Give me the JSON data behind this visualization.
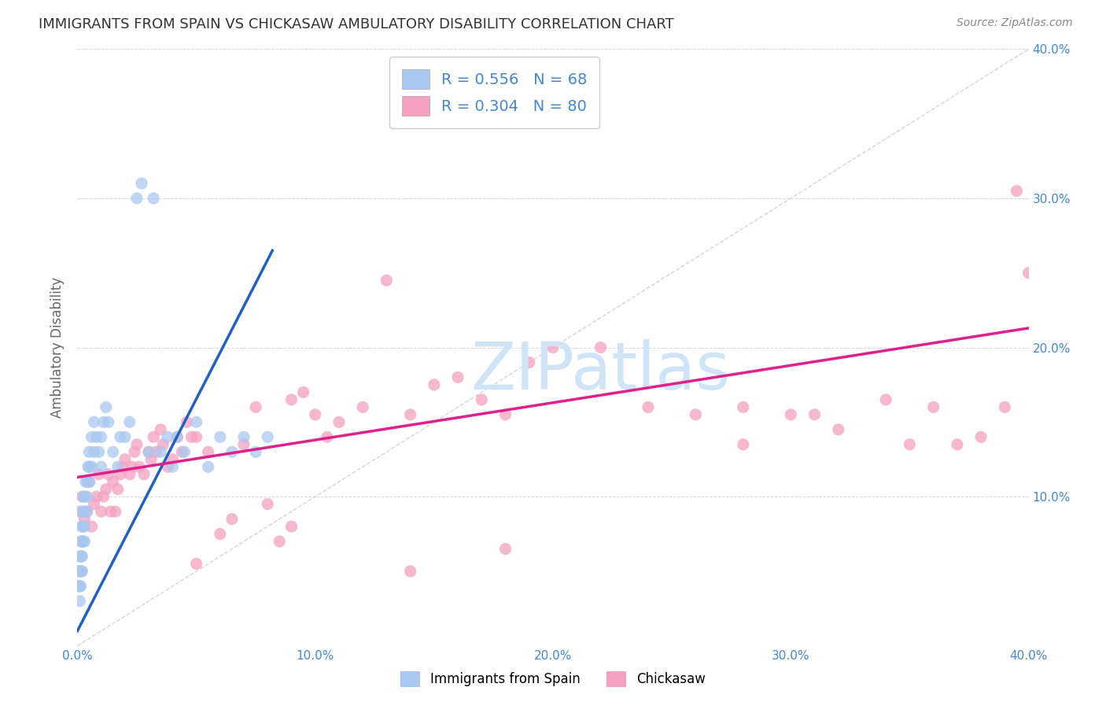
{
  "title": "IMMIGRANTS FROM SPAIN VS CHICKASAW AMBULATORY DISABILITY CORRELATION CHART",
  "source": "Source: ZipAtlas.com",
  "ylabel": "Ambulatory Disability",
  "xlim": [
    0.0,
    0.4
  ],
  "ylim": [
    0.0,
    0.4
  ],
  "blue_R": 0.556,
  "blue_N": 68,
  "pink_R": 0.304,
  "pink_N": 80,
  "blue_color": "#A8C8F0",
  "pink_color": "#F4A0C0",
  "blue_line_color": "#2060C0",
  "pink_line_color": "#E0208C",
  "diag_line_color": "#BBBBBB",
  "legend_label_blue": "Immigrants from Spain",
  "legend_label_pink": "Chickasaw",
  "background_color": "#FFFFFF",
  "title_color": "#333333",
  "source_color": "#888888",
  "axis_label_color": "#4488CC",
  "watermark_color": "#D0E4F8",
  "blue_scatter_x": [
    0.0005,
    0.0006,
    0.0007,
    0.0008,
    0.0009,
    0.001,
    0.001,
    0.001,
    0.0012,
    0.0013,
    0.0014,
    0.0015,
    0.0015,
    0.0016,
    0.0017,
    0.0018,
    0.002,
    0.002,
    0.002,
    0.0022,
    0.0023,
    0.0024,
    0.0025,
    0.0026,
    0.003,
    0.003,
    0.003,
    0.0032,
    0.0035,
    0.004,
    0.004,
    0.004,
    0.0045,
    0.005,
    0.005,
    0.005,
    0.006,
    0.006,
    0.007,
    0.007,
    0.008,
    0.009,
    0.01,
    0.01,
    0.011,
    0.012,
    0.013,
    0.015,
    0.017,
    0.018,
    0.02,
    0.022,
    0.025,
    0.027,
    0.03,
    0.032,
    0.035,
    0.038,
    0.04,
    0.042,
    0.045,
    0.05,
    0.055,
    0.06,
    0.065,
    0.07,
    0.075,
    0.08
  ],
  "blue_scatter_y": [
    0.04,
    0.05,
    0.04,
    0.06,
    0.05,
    0.04,
    0.05,
    0.03,
    0.06,
    0.05,
    0.04,
    0.07,
    0.06,
    0.05,
    0.08,
    0.07,
    0.06,
    0.07,
    0.05,
    0.09,
    0.08,
    0.07,
    0.1,
    0.09,
    0.07,
    0.09,
    0.08,
    0.1,
    0.11,
    0.1,
    0.09,
    0.11,
    0.12,
    0.11,
    0.12,
    0.13,
    0.12,
    0.14,
    0.13,
    0.15,
    0.14,
    0.13,
    0.12,
    0.14,
    0.15,
    0.16,
    0.15,
    0.13,
    0.12,
    0.14,
    0.14,
    0.15,
    0.3,
    0.31,
    0.13,
    0.3,
    0.13,
    0.14,
    0.12,
    0.14,
    0.13,
    0.15,
    0.12,
    0.14,
    0.13,
    0.14,
    0.13,
    0.14
  ],
  "pink_scatter_x": [
    0.001,
    0.002,
    0.003,
    0.004,
    0.005,
    0.006,
    0.007,
    0.008,
    0.009,
    0.01,
    0.011,
    0.012,
    0.013,
    0.014,
    0.015,
    0.016,
    0.017,
    0.018,
    0.019,
    0.02,
    0.022,
    0.023,
    0.024,
    0.025,
    0.026,
    0.028,
    0.03,
    0.031,
    0.032,
    0.033,
    0.035,
    0.036,
    0.038,
    0.04,
    0.042,
    0.044,
    0.046,
    0.048,
    0.05,
    0.055,
    0.06,
    0.065,
    0.07,
    0.075,
    0.08,
    0.085,
    0.09,
    0.095,
    0.1,
    0.105,
    0.11,
    0.12,
    0.13,
    0.14,
    0.15,
    0.16,
    0.17,
    0.18,
    0.19,
    0.2,
    0.22,
    0.24,
    0.26,
    0.28,
    0.3,
    0.31,
    0.32,
    0.34,
    0.35,
    0.36,
    0.37,
    0.38,
    0.39,
    0.395,
    0.4,
    0.28,
    0.18,
    0.14,
    0.09,
    0.05
  ],
  "pink_scatter_y": [
    0.09,
    0.1,
    0.085,
    0.09,
    0.11,
    0.08,
    0.095,
    0.1,
    0.115,
    0.09,
    0.1,
    0.105,
    0.115,
    0.09,
    0.11,
    0.09,
    0.105,
    0.115,
    0.12,
    0.125,
    0.115,
    0.12,
    0.13,
    0.135,
    0.12,
    0.115,
    0.13,
    0.125,
    0.14,
    0.13,
    0.145,
    0.135,
    0.12,
    0.125,
    0.14,
    0.13,
    0.15,
    0.14,
    0.14,
    0.13,
    0.075,
    0.085,
    0.135,
    0.16,
    0.095,
    0.07,
    0.165,
    0.17,
    0.155,
    0.14,
    0.15,
    0.16,
    0.245,
    0.155,
    0.175,
    0.18,
    0.165,
    0.155,
    0.19,
    0.2,
    0.2,
    0.16,
    0.155,
    0.16,
    0.155,
    0.155,
    0.145,
    0.165,
    0.135,
    0.16,
    0.135,
    0.14,
    0.16,
    0.305,
    0.25,
    0.135,
    0.065,
    0.05,
    0.08,
    0.055
  ],
  "blue_line_x": [
    0.0,
    0.082
  ],
  "blue_line_y": [
    0.01,
    0.265
  ],
  "pink_line_x": [
    0.0,
    0.4
  ],
  "pink_line_y": [
    0.113,
    0.213
  ]
}
